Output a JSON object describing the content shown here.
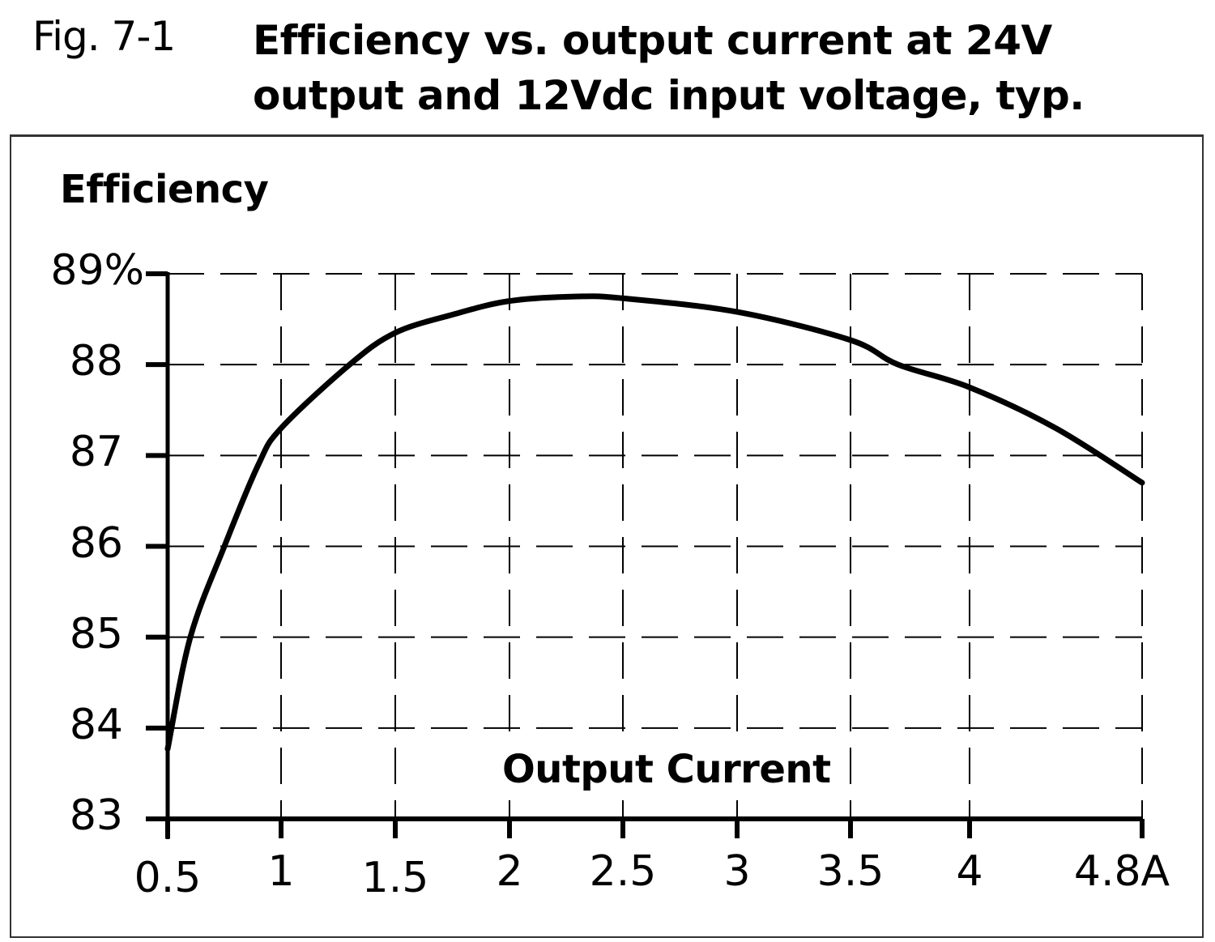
{
  "figure": {
    "label": "Fig. 7-1",
    "title_line1": "Efficiency vs. output current at 24V",
    "title_line2": "output and 12Vdc input voltage, typ."
  },
  "axes": {
    "y_title": "Efficiency",
    "x_title": "Output Current",
    "y_ticks": [
      "89%",
      "88",
      "87",
      "86",
      "85",
      "84",
      "83"
    ],
    "x_ticks": [
      "0.5",
      "1",
      "1.5",
      "2",
      "2.5",
      "3",
      "3.5",
      "4",
      "4.8A"
    ]
  },
  "chart_data": {
    "type": "line",
    "title": "Efficiency vs. output current at 24V output and 12Vdc input voltage, typ.",
    "figure_label": "Fig. 7-1",
    "xlabel": "Output Current",
    "ylabel": "Efficiency",
    "x_unit": "A",
    "y_unit": "%",
    "xlim": [
      0.5,
      4.8
    ],
    "ylim": [
      83,
      89
    ],
    "x_ticks": [
      0.5,
      1,
      1.5,
      2,
      2.5,
      3,
      3.5,
      4,
      4.8
    ],
    "y_ticks": [
      83,
      84,
      85,
      86,
      87,
      88,
      89
    ],
    "grid": true,
    "grid_style": "dashed",
    "legend": null,
    "series": [
      {
        "name": "Efficiency",
        "color": "#000000",
        "x": [
          0.5,
          0.6,
          0.75,
          0.9,
          1.0,
          1.3,
          1.5,
          1.75,
          2.0,
          2.3,
          2.5,
          3.0,
          3.5,
          3.7,
          4.0,
          4.4,
          4.8
        ],
        "y": [
          83.77,
          85.0,
          86.0,
          86.9,
          87.3,
          88.0,
          88.35,
          88.55,
          88.7,
          88.75,
          88.73,
          88.58,
          88.27,
          88.0,
          87.75,
          87.3,
          86.7
        ]
      }
    ]
  },
  "colors": {
    "line": "#000000",
    "grid": "#000000",
    "frame": "#333333",
    "background": "#ffffff"
  }
}
